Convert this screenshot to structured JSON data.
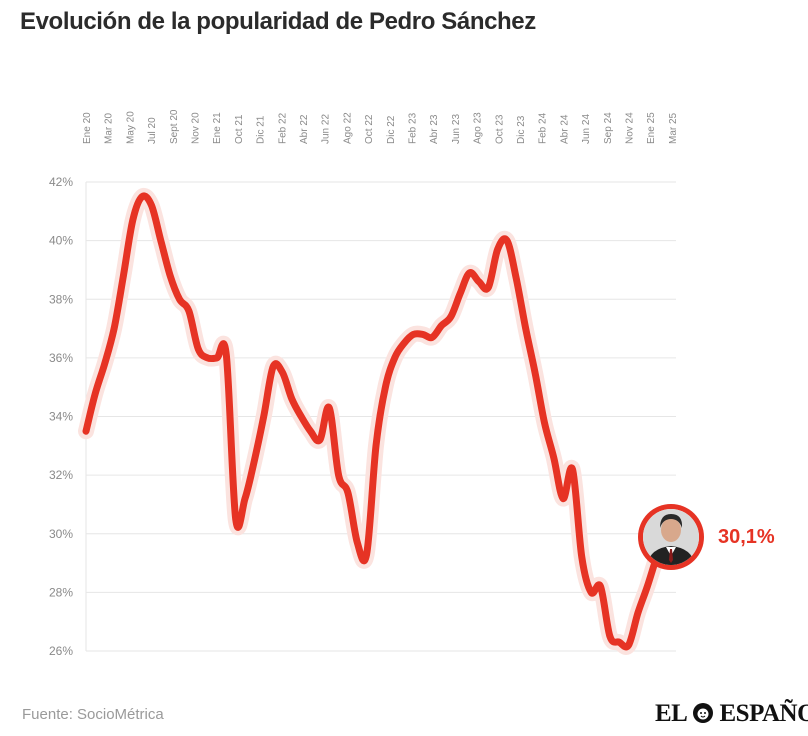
{
  "header": {
    "title": "Evolución de la popularidad de Pedro Sánchez"
  },
  "footer": {
    "source": "Fuente: SocioMétrica",
    "logo_left": "EL",
    "logo_right": "ESPAÑOL"
  },
  "end_label": "30,1%",
  "colors": {
    "line": "#e63324",
    "halo": "#fbe3df",
    "grid": "#e6e6e6",
    "ticks": "#8a8a8a"
  },
  "icons": {
    "portrait": "person-portrait-icon",
    "logo_mark": "lion-head-icon"
  },
  "chart_data": {
    "type": "line",
    "title": "Evolución de la popularidad de Pedro Sánchez",
    "xlabel": "",
    "ylabel": "",
    "ylim": [
      26,
      42
    ],
    "ytick_values": [
      26,
      28,
      30,
      32,
      34,
      36,
      38,
      40,
      42
    ],
    "yticks": [
      "26%",
      "28%",
      "30%",
      "32%",
      "34%",
      "36%",
      "38%",
      "40%",
      "42%"
    ],
    "xticks": [
      "Ene 20",
      "Mar 20",
      "May 20",
      "Jul 20",
      "Sept 20",
      "Nov 20",
      "Ene 21",
      "Oct 21",
      "Dic 21",
      "Feb 22",
      "Abr 22",
      "Jun 22",
      "Ago 22",
      "Oct 22",
      "Dic 22",
      "Feb 23",
      "Abr 23",
      "Jun 23",
      "Ago 23",
      "Oct 23",
      "Dic 23",
      "Feb 24",
      "Abr 24",
      "Jun 24",
      "Sep 24",
      "Nov 24",
      "Ene 25",
      "Mar 25"
    ],
    "grid": true,
    "series": [
      {
        "values": [
          33.5,
          34.8,
          35.8,
          37,
          38.8,
          40.7,
          41.5,
          41.2,
          40,
          38.8,
          38,
          37.6,
          36.3,
          36,
          36,
          36.1,
          30.5,
          31.2,
          32.5,
          34,
          35.7,
          35.5,
          34.6,
          34,
          33.5,
          33.2,
          34.3,
          32,
          31.4,
          29.7,
          29.3,
          33,
          35,
          36,
          36.5,
          36.8,
          36.8,
          36.7,
          37.1,
          37.4,
          38.2,
          38.9,
          38.6,
          38.4,
          39.7,
          40,
          38.7,
          37,
          35.5,
          33.8,
          32.6,
          31.2,
          32.2,
          29.2,
          28,
          28.2,
          26.5,
          26.3,
          26.2,
          27.3,
          28.2,
          29.2,
          30.1
        ]
      }
    ]
  }
}
